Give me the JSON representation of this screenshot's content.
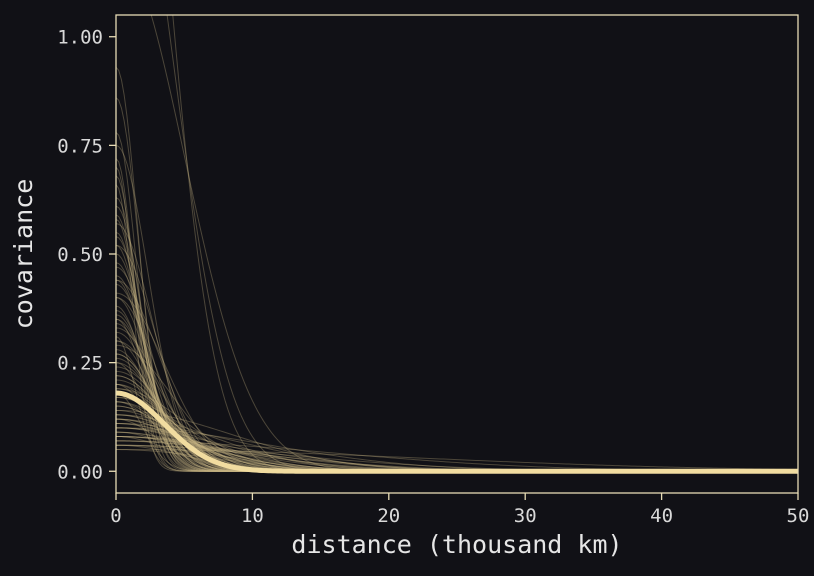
{
  "chart_data": {
    "type": "line",
    "title": "",
    "xlabel": "distance (thousand km)",
    "ylabel": "covariance",
    "xlim": [
      0,
      50
    ],
    "ylim": [
      -0.05,
      1.05
    ],
    "xticks": [
      0,
      10,
      20,
      30,
      40,
      50
    ],
    "xtick_labels": [
      "0",
      "10",
      "20",
      "30",
      "40",
      "50"
    ],
    "yticks": [
      0,
      0.25,
      0.5,
      0.75,
      1.0
    ],
    "ytick_labels": [
      "0.00",
      "0.25",
      "0.50",
      "0.75",
      "1.00"
    ],
    "grid": false,
    "legend": "none",
    "colors": {
      "background": "#111116",
      "frame": "#e8dcb5",
      "line": "#f1dca0",
      "thin_line": "#c9b886"
    },
    "mean_curve": {
      "form": "gaussian",
      "eta_sq": 0.18,
      "rho_sq": 0.04,
      "x": [
        0,
        2,
        4,
        6,
        8,
        10,
        12,
        15,
        20,
        30,
        40,
        50
      ],
      "y": [
        0.18,
        0.153,
        0.094,
        0.042,
        0.014,
        0.003,
        0.001,
        0.0,
        0.0,
        0.0,
        0.0,
        0.0
      ]
    },
    "posterior_samples": {
      "count": 100,
      "form": "eta_sq * exp(-rho_sq * d^2)",
      "eta_sq": [
        0.05,
        0.06,
        0.08,
        0.12,
        0.2,
        0.35,
        0.93,
        0.66,
        0.41,
        0.18,
        0.52,
        0.25,
        0.07,
        0.1,
        0.14,
        0.29,
        0.75,
        0.44,
        0.17,
        0.09,
        0.31,
        0.57,
        0.13,
        0.06,
        0.22,
        0.86,
        0.38,
        0.11,
        0.15,
        0.27,
        0.61,
        0.08,
        0.19,
        0.47,
        0.33,
        0.12,
        0.7,
        0.24,
        0.1,
        0.05,
        1.2,
        1.6,
        2.1,
        0.16,
        0.36,
        0.54,
        0.09,
        0.28,
        0.13,
        0.45,
        0.78,
        0.21,
        0.06,
        0.4,
        0.63,
        0.17,
        0.11,
        0.3,
        0.5,
        0.08,
        0.14,
        0.26,
        0.72,
        0.19,
        0.34,
        0.07,
        0.59,
        0.23,
        0.12,
        0.43,
        0.1,
        0.32,
        0.16,
        0.55,
        0.08,
        0.2,
        0.37,
        0.68,
        0.11,
        0.25,
        0.06,
        0.48,
        0.15,
        0.3,
        0.09,
        0.4,
        0.58,
        0.13,
        0.22,
        0.07,
        0.35,
        0.18,
        0.44,
        0.1,
        0.27,
        0.12,
        0.52,
        0.16,
        0.08,
        0.2
      ],
      "rho_sq": [
        0.01,
        0.02,
        0.03,
        0.05,
        0.08,
        0.12,
        0.2,
        0.35,
        0.04,
        0.15,
        0.06,
        0.1,
        0.002,
        0.004,
        0.007,
        0.03,
        0.09,
        0.05,
        0.02,
        0.015,
        0.25,
        0.07,
        0.01,
        0.003,
        0.04,
        0.18,
        0.11,
        0.006,
        0.03,
        0.06,
        0.14,
        0.005,
        0.02,
        0.08,
        0.05,
        0.012,
        0.3,
        0.04,
        0.008,
        0.001,
        0.02,
        0.03,
        0.04,
        0.05,
        0.09,
        0.13,
        0.025,
        0.07,
        0.018,
        0.1,
        0.22,
        0.035,
        0.009,
        0.06,
        0.16,
        0.028,
        0.014,
        0.045,
        0.12,
        0.01,
        0.022,
        0.055,
        0.28,
        0.03,
        0.075,
        0.005,
        0.17,
        0.04,
        0.02,
        0.085,
        0.011,
        0.065,
        0.026,
        0.15,
        0.007,
        0.033,
        0.095,
        0.24,
        0.016,
        0.05,
        0.004,
        0.11,
        0.03,
        0.07,
        0.012,
        0.09,
        0.19,
        0.021,
        0.042,
        0.006,
        0.08,
        0.027,
        0.1,
        0.013,
        0.058,
        0.019,
        0.14,
        0.036,
        0.008,
        0.047
      ]
    }
  }
}
